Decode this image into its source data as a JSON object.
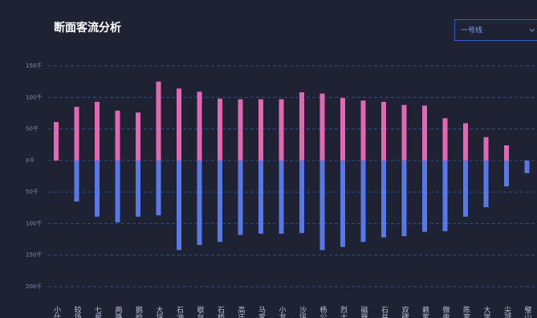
{
  "title": "断面客流分析",
  "dropdown": {
    "label": "一号线"
  },
  "chart_data": {
    "type": "bar",
    "categories": [
      "小什",
      "较场",
      "七星",
      "两路",
      "鹅岭",
      "大坪",
      "石油",
      "歇台",
      "石桥",
      "高庄",
      "马家",
      "小龙",
      "沙坪",
      "杨公",
      "烈士",
      "磁器",
      "石井",
      "双碑",
      "赖家",
      "微电",
      "陈家",
      "大学",
      "尖顶",
      "璧山"
    ],
    "series": [
      {
        "color": "#e168b3",
        "values": [
          61,
          85,
          93,
          79,
          76,
          125,
          114,
          109,
          98,
          97,
          97,
          97,
          108,
          106,
          99,
          95,
          93,
          88,
          87,
          67,
          59,
          37,
          24,
          0
        ]
      },
      {
        "color": "#5878e8",
        "values": [
          0,
          -65,
          -89,
          -98,
          -89,
          -87,
          -142,
          -134,
          -129,
          -118,
          -116,
          -116,
          -115,
          -142,
          -137,
          -129,
          -122,
          -120,
          -113,
          -112,
          -89,
          -74,
          -41,
          -20
        ]
      }
    ],
    "ylim": [
      -200,
      150
    ],
    "yticks": [
      {
        "value": 150,
        "label": "150千"
      },
      {
        "value": 100,
        "label": "100千"
      },
      {
        "value": 50,
        "label": "50千"
      },
      {
        "value": 0,
        "label": "0千"
      },
      {
        "value": -50,
        "label": "50千"
      },
      {
        "value": -100,
        "label": "100千"
      },
      {
        "value": -150,
        "label": "150千"
      },
      {
        "value": -200,
        "label": "200千"
      }
    ],
    "grid": true
  }
}
